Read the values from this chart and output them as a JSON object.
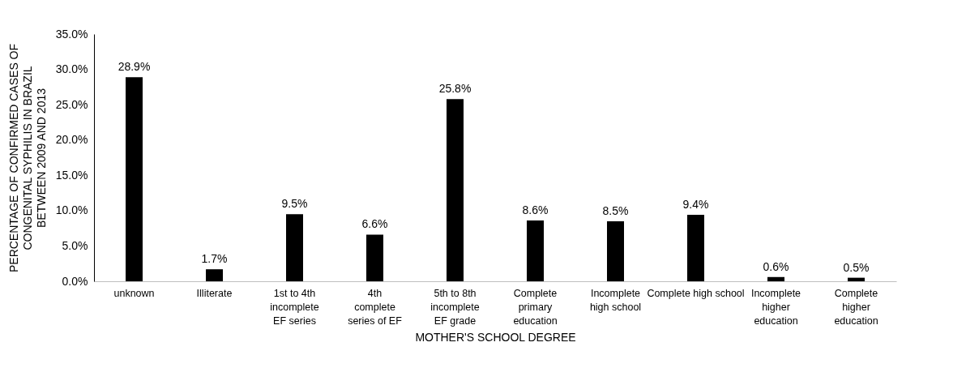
{
  "chart_data": {
    "type": "bar",
    "xlabel": "MOTHER'S SCHOOL DEGREE",
    "ylabel": "PERCENTAGE OF CONFIRMED CASES OF\nCONGENITAL SYPHILIS IN BRAZIL\nBETWEEN 2009 AND 2013",
    "categories": [
      "unknown",
      "Illiterate",
      "1st to 4th\nincomplete\nEF series",
      "4th\ncomplete\nseries of EF",
      "5th to 8th\nincomplete\nEF grade",
      "Complete\nprimary\neducation",
      "Incomplete\nhigh school",
      "Complete high school",
      "Incomplete\nhigher\neducation",
      "Complete\nhigher\neducation"
    ],
    "values": [
      28.9,
      1.7,
      9.5,
      6.6,
      25.8,
      8.6,
      8.5,
      9.4,
      0.6,
      0.5
    ],
    "value_labels": [
      "28.9%",
      "1.7%",
      "9.5%",
      "6.6%",
      "25.8%",
      "8.6%",
      "8.5%",
      "9.4%",
      "0.6%",
      "0.5%"
    ],
    "color": "#000000",
    "ylim": [
      0,
      35
    ],
    "yticks": [
      {
        "value": 0,
        "label": "0.0%"
      },
      {
        "value": 5,
        "label": "5.0%"
      },
      {
        "value": 10,
        "label": "10.0%"
      },
      {
        "value": 15,
        "label": "15.0%"
      },
      {
        "value": 20,
        "label": "20.0%"
      },
      {
        "value": 25,
        "label": "25.0%"
      },
      {
        "value": 30,
        "label": "30.0%"
      },
      {
        "value": 35,
        "label": "35.0%"
      }
    ],
    "grid": false
  }
}
